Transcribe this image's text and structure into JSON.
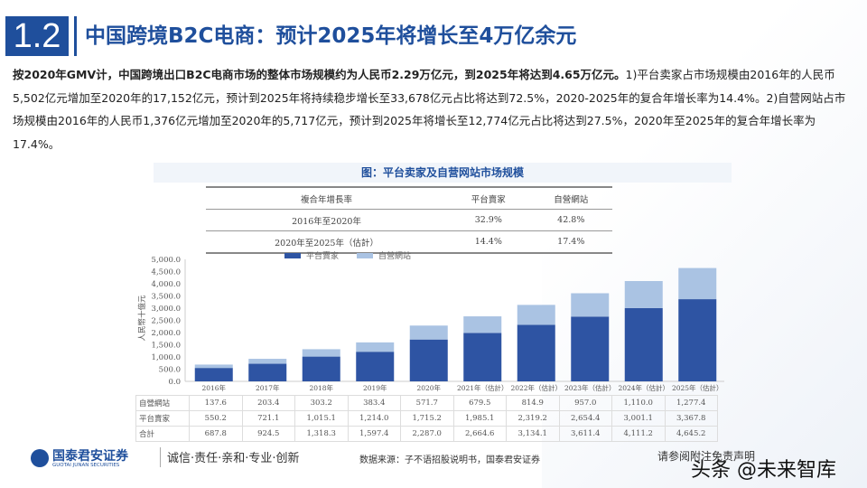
{
  "header": {
    "section_number": "1.2",
    "title": "中国跨境B2C电商：预计2025年将增长至4万亿余元"
  },
  "paragraph": {
    "lead": "按2020年GMV计，中国跨境出口B2C电商市场的整体市场规模约为人民币2.29万亿元，到2025年将达到4.65万亿元。",
    "body": "1)平台卖家占市场规模由2016年的人民币5,502亿元增加至2020年的17,152亿元，预计到2025年将持续稳步增长至33,678亿元占比将达到72.5%，2020-2025年的复合年增长率为14.4%。2)自营网站占市场规模由2016年的人民币1,376亿元增加至2020年的5,717亿元，预计到2025年将增长至12,774亿元占比将达到27.5%，2020年至2025年的复合年增长率为17.4%。"
  },
  "figure_title": "图：平台卖家及自营网站市场规模",
  "cagr_table": {
    "headers": [
      "複合年增長率",
      "平台賣家",
      "自營網站"
    ],
    "rows": [
      [
        "2016年至2020年",
        "32.9%",
        "42.8%"
      ],
      [
        "2020年至2025年（估計）",
        "14.4%",
        "17.4%"
      ]
    ]
  },
  "chart_data": {
    "type": "bar",
    "stacked": true,
    "ylabel": "人民幣十億元",
    "ylim": [
      0,
      5000
    ],
    "yticks": [
      "0.0",
      "500.0",
      "1,000.0",
      "1,500.0",
      "2,000.0",
      "2,500.0",
      "3,000.0",
      "3,500.0",
      "4,000.0",
      "4,500.0",
      "5,000.0"
    ],
    "categories": [
      "2016年",
      "2017年",
      "2018年",
      "2019年",
      "2020年",
      "2021年（估計）",
      "2022年（估計）",
      "2023年（估計）",
      "2024年（估計）",
      "2025年（估計）"
    ],
    "series": [
      {
        "name": "平台賣家",
        "color": "#2e54a3",
        "values": [
          550.2,
          721.1,
          1015.1,
          1214.0,
          1715.2,
          1985.1,
          2319.2,
          2654.4,
          3001.1,
          3367.8
        ],
        "labels": [
          "550.2",
          "721.1",
          "1,015.1",
          "1,214.0",
          "1,715.2",
          "1,985.1",
          "2,319.2",
          "2,654.4",
          "3,001.1",
          "3,367.8"
        ]
      },
      {
        "name": "自營網站",
        "color": "#aac3e3",
        "values": [
          137.6,
          203.4,
          303.2,
          383.4,
          571.7,
          679.5,
          814.9,
          957.0,
          1110.0,
          1277.4
        ],
        "labels": [
          "137.6",
          "203.4",
          "303.2",
          "383.4",
          "571.7",
          "679.5",
          "814.9",
          "957.0",
          "1,110.0",
          "1,277.4"
        ]
      }
    ],
    "total_label": "合計",
    "totals": [
      "687.8",
      "924.5",
      "1,318.3",
      "1,597.4",
      "2,287.0",
      "2,664.6",
      "3,134.1",
      "3,611.4",
      "4,111.2",
      "4,645.2"
    ],
    "legend": "top"
  },
  "footer": {
    "company": "国泰君安证券",
    "company_en": "GUOTAI JUNAN SECURITIES",
    "slogan": "诚信·责任·亲和·专业·创新",
    "source": "数据来源：子不语招股说明书，国泰君安证券",
    "disclaimer": "请参阅附注免责声明",
    "watermark": "头条 @未来智库"
  }
}
